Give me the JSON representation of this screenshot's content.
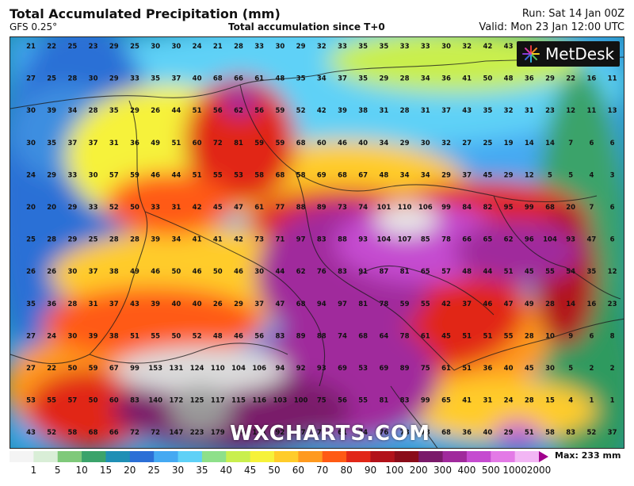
{
  "header": {
    "title": "Total Accumulated Precipitation (mm)",
    "model": "GFS 0.25°",
    "subtitle": "Total accumulation since T+0",
    "run": "Run: Sat 14 Jan 00Z",
    "valid": "Valid: Mon 23 Jan 12:00 UTC"
  },
  "logo": {
    "text": "MetDesk",
    "icon": "metdesk-starburst-icon"
  },
  "watermark": "WXCHARTS.COM",
  "colorbar": {
    "labels": [
      "1",
      "5",
      "10",
      "15",
      "20",
      "25",
      "30",
      "35",
      "40",
      "45",
      "50",
      "60",
      "70",
      "80",
      "90",
      "100",
      "200",
      "300",
      "400",
      "500",
      "1000",
      "2000"
    ],
    "colors": [
      "#f4f4f4",
      "#d9eed7",
      "#7fc97a",
      "#3ba36b",
      "#1f8fb5",
      "#2b6fd6",
      "#45a9f2",
      "#5fd1f7",
      "#8ee08a",
      "#c9ef4e",
      "#f6f23a",
      "#ffcc2a",
      "#ff9a1f",
      "#ff5a14",
      "#e12718",
      "#b2121a",
      "#8a0c19",
      "#7a1a6a",
      "#a0299c",
      "#c54bd0",
      "#e37ae6",
      "#f2b6f4"
    ],
    "max_label": "Max: 233 mm"
  },
  "grid_values": [
    [
      21,
      22,
      25,
      23,
      29,
      25,
      30,
      30,
      24,
      21,
      28,
      33,
      30,
      29,
      32,
      33,
      35,
      35,
      33,
      33,
      30,
      32,
      42,
      43
    ],
    [
      27,
      25,
      28,
      30,
      29,
      33,
      35,
      37,
      40,
      68,
      66,
      61,
      48,
      35,
      34,
      37,
      35,
      29,
      28,
      34,
      36,
      41,
      50,
      48,
      36,
      29,
      22,
      16,
      11
    ],
    [
      30,
      39,
      34,
      28,
      35,
      29,
      26,
      44,
      51,
      56,
      62,
      56,
      59,
      52,
      42,
      39,
      38,
      31,
      28,
      31,
      37,
      43,
      35,
      32,
      31,
      23,
      12,
      11,
      13
    ],
    [
      30,
      35,
      37,
      37,
      31,
      36,
      49,
      51,
      60,
      72,
      81,
      59,
      59,
      68,
      60,
      46,
      40,
      34,
      29,
      30,
      32,
      27,
      25,
      19,
      14,
      14,
      7,
      6,
      6
    ],
    [
      24,
      29,
      33,
      30,
      57,
      59,
      46,
      44,
      51,
      55,
      53,
      58,
      68,
      58,
      69,
      68,
      67,
      48,
      34,
      34,
      29,
      37,
      45,
      29,
      12,
      5,
      5,
      4,
      3
    ],
    [
      20,
      20,
      29,
      33,
      52,
      50,
      33,
      31,
      42,
      45,
      47,
      61,
      77,
      88,
      89,
      73,
      74,
      101,
      110,
      106,
      99,
      84,
      82,
      95,
      99,
      68,
      20,
      7,
      6
    ],
    [
      25,
      28,
      29,
      25,
      28,
      28,
      39,
      34,
      41,
      41,
      42,
      73,
      71,
      97,
      83,
      88,
      93,
      104,
      107,
      85,
      78,
      66,
      65,
      62,
      96,
      104,
      93,
      47,
      6
    ],
    [
      26,
      26,
      30,
      37,
      38,
      49,
      46,
      50,
      46,
      50,
      46,
      30,
      44,
      62,
      76,
      83,
      91,
      87,
      81,
      65,
      57,
      48,
      44,
      51,
      45,
      55,
      54,
      35,
      12
    ],
    [
      35,
      36,
      28,
      31,
      37,
      43,
      39,
      40,
      40,
      26,
      29,
      37,
      47,
      68,
      94,
      97,
      81,
      78,
      59,
      55,
      42,
      37,
      46,
      47,
      49,
      28,
      14,
      16,
      23
    ],
    [
      27,
      24,
      30,
      39,
      38,
      51,
      55,
      50,
      52,
      48,
      46,
      56,
      83,
      89,
      88,
      74,
      68,
      64,
      78,
      61,
      45,
      51,
      51,
      55,
      28,
      10,
      9,
      6,
      8
    ],
    [
      27,
      22,
      50,
      59,
      67,
      99,
      153,
      131,
      124,
      110,
      104,
      106,
      94,
      92,
      93,
      69,
      53,
      69,
      89,
      75,
      61,
      51,
      36,
      40,
      45,
      30,
      5,
      2,
      2
    ],
    [
      53,
      55,
      57,
      50,
      60,
      83,
      140,
      172,
      125,
      117,
      115,
      116,
      103,
      100,
      75,
      56,
      55,
      81,
      83,
      99,
      65,
      41,
      31,
      24,
      28,
      15,
      4,
      1,
      1
    ],
    [
      43,
      52,
      58,
      68,
      66,
      72,
      72,
      147,
      223,
      179,
      138,
      111,
      92,
      97,
      73,
      61,
      74,
      76,
      78,
      78,
      68,
      36,
      40,
      29,
      51,
      58,
      83,
      52,
      37
    ]
  ]
}
